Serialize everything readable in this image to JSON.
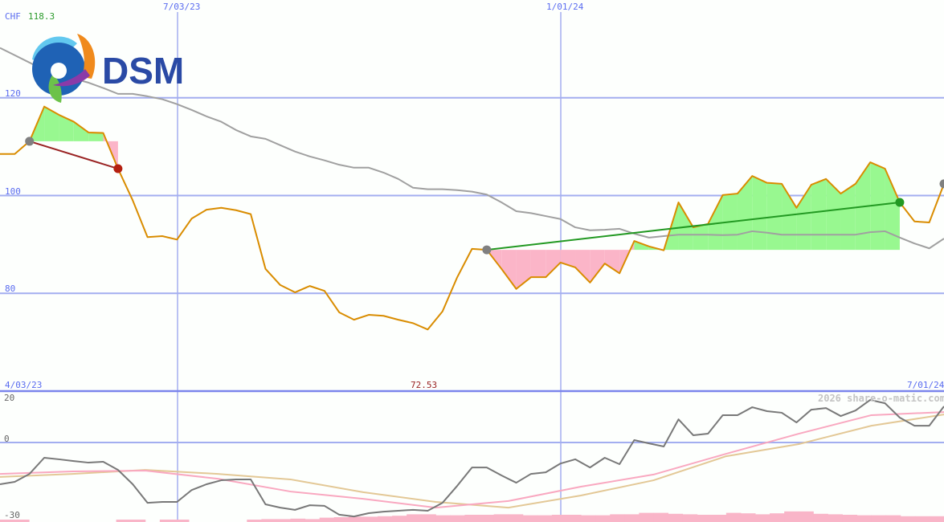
{
  "header": {
    "currency": "CHF",
    "max_price": "118.3",
    "min_price": "72.53",
    "logo_text": "DSM",
    "watermark": "2026 share-o-matic.com"
  },
  "colors": {
    "price": "#d98c00",
    "long_ma": "#a0a0a0",
    "grid": "#a3aef0",
    "separator": "#7b85ec",
    "gain_fill": "#98f890",
    "loss_fill": "#fbb5c8",
    "gain_line": "#229922",
    "loss_line": "#992222",
    "oscillator": "#787878",
    "osc_ma_fast": "#f9a8c0",
    "osc_ma_slow": "#e3c896",
    "volume": "#f9b5c8",
    "label_blue": "#5a6cf0",
    "label_green": "#2a9a2a",
    "label_red": "#992222"
  },
  "chart_data": [
    {
      "type": "line",
      "x_tick_labels": [
        "4/03/23",
        "7/03/23",
        "1/01/24",
        "7/01/24"
      ],
      "y_tick_labels": [
        "120",
        "100",
        "80"
      ],
      "y_ticks": [
        120,
        100,
        80
      ],
      "ylim": [
        60,
        140
      ],
      "grid": true,
      "series": [
        {
          "role": "price",
          "values": [
            108.5,
            108.5,
            111.1,
            118.2,
            116.5,
            115.1,
            112.9,
            112.8,
            105.5,
            99.0,
            91.5,
            91.7,
            91.0,
            95.3,
            97.1,
            97.5,
            97.0,
            96.2,
            85.0,
            81.7,
            80.2,
            81.5,
            80.5,
            76.1,
            74.6,
            75.6,
            75.4,
            74.6,
            73.9,
            72.6,
            76.3,
            83.3,
            89.1,
            88.9,
            85.0,
            80.9,
            83.3,
            83.3,
            86.3,
            85.3,
            82.2,
            86.1,
            84.1,
            90.7,
            89.6,
            88.8,
            98.6,
            93.5,
            94.2,
            100.1,
            100.4,
            104.0,
            102.6,
            102.4,
            97.5,
            102.2,
            103.4,
            100.4,
            102.4,
            106.8,
            105.5,
            98.6,
            94.7,
            94.5,
            102.4
          ]
        },
        {
          "role": "long-moving-average",
          "values": [
            130.2,
            128.7,
            127.2,
            125.6,
            124.8,
            123.9,
            123.1,
            122.0,
            120.8,
            120.8,
            120.3,
            119.7,
            118.7,
            117.5,
            116.2,
            115.1,
            113.4,
            112.1,
            111.6,
            110.3,
            109.0,
            108.0,
            107.2,
            106.3,
            105.7,
            105.7,
            104.7,
            103.4,
            101.6,
            101.3,
            101.3,
            101.1,
            100.8,
            100.2,
            98.6,
            96.8,
            96.4,
            95.8,
            95.2,
            93.5,
            92.9,
            93.0,
            93.2,
            92.2,
            91.4,
            91.7,
            92.0,
            92.0,
            92.0,
            91.9,
            92.0,
            92.7,
            92.4,
            92.0,
            92.0,
            92.0,
            92.0,
            92.0,
            92.0,
            92.5,
            92.7,
            91.4,
            90.2,
            89.2,
            91.2
          ]
        }
      ],
      "signals": [
        {
          "start_index": 2,
          "end_index": 8,
          "result": "loss",
          "start_marker": "grey",
          "end_marker": "red"
        },
        {
          "start_index": 33,
          "end_index": 61,
          "result": "gain",
          "start_marker": "grey",
          "end_marker": "green"
        }
      ],
      "open_marker_index": 64
    },
    {
      "type": "line",
      "y_tick_labels": [
        "20",
        "0",
        "-30"
      ],
      "y_ticks": [
        20,
        0,
        -30
      ],
      "ylim": [
        -36,
        23.3
      ],
      "grid": true,
      "series": [
        {
          "role": "oscillator",
          "values": [
            -18.9,
            -17.8,
            -14.2,
            -6.9,
            -7.6,
            -8.4,
            -9.1,
            -8.7,
            -12.4,
            -18.9,
            -27.3,
            -26.9,
            -26.9,
            -21.5,
            -18.9,
            -17.1,
            -16.7,
            -16.7,
            -28.0,
            -29.5,
            -30.5,
            -28.4,
            -28.7,
            -32.7,
            -33.5,
            -32.0,
            -31.3,
            -30.9,
            -30.5,
            -30.9,
            -27.3,
            -19.6,
            -11.3,
            -11.3,
            -14.9,
            -18.2,
            -14.2,
            -13.5,
            -9.5,
            -7.6,
            -11.3,
            -6.9,
            -9.8,
            1.1,
            -0.4,
            -1.8,
            10.5,
            3.3,
            4.0,
            12.4,
            12.4,
            16.0,
            14.2,
            13.5,
            9.1,
            14.9,
            15.6,
            12.0,
            14.5,
            19.3,
            17.8,
            11.3,
            7.6,
            7.6,
            16.4
          ]
        },
        {
          "role": "oscillator-fast-average",
          "values": [
            -14.2,
            -13.1,
            -12.7,
            -16.4,
            -22.2,
            -25.5,
            -29.5,
            -26.5,
            -20.0,
            -14.5,
            -5.1,
            4.0,
            12.4,
            13.8
          ]
        },
        {
          "role": "oscillator-slow-average",
          "values": [
            -15.6,
            -14.2,
            -12.4,
            -14.2,
            -16.7,
            -22.5,
            -26.9,
            -29.5,
            -24.0,
            -17.1,
            -6.2,
            -0.7,
            7.6,
            12.7
          ]
        }
      ],
      "volume_relative": [
        0.25,
        0.25,
        0,
        0,
        0,
        0,
        0,
        0,
        0.25,
        0.25,
        0,
        0.25,
        0.25,
        0,
        0,
        0,
        0,
        0.25,
        0.3,
        0.3,
        0.35,
        0.3,
        0.45,
        0.5,
        0.55,
        0.55,
        0.6,
        0.65,
        0.8,
        0.8,
        0.7,
        0.7,
        0.75,
        0.75,
        0.8,
        0.8,
        0.7,
        0.7,
        0.75,
        0.75,
        0.7,
        0.7,
        0.8,
        0.8,
        0.95,
        0.95,
        0.85,
        0.8,
        0.75,
        0.75,
        0.95,
        0.9,
        0.8,
        0.9,
        1.1,
        1.1,
        0.85,
        0.8,
        0.75,
        0.7,
        0.7,
        0.7,
        0.6,
        0.6,
        0.6
      ]
    }
  ]
}
